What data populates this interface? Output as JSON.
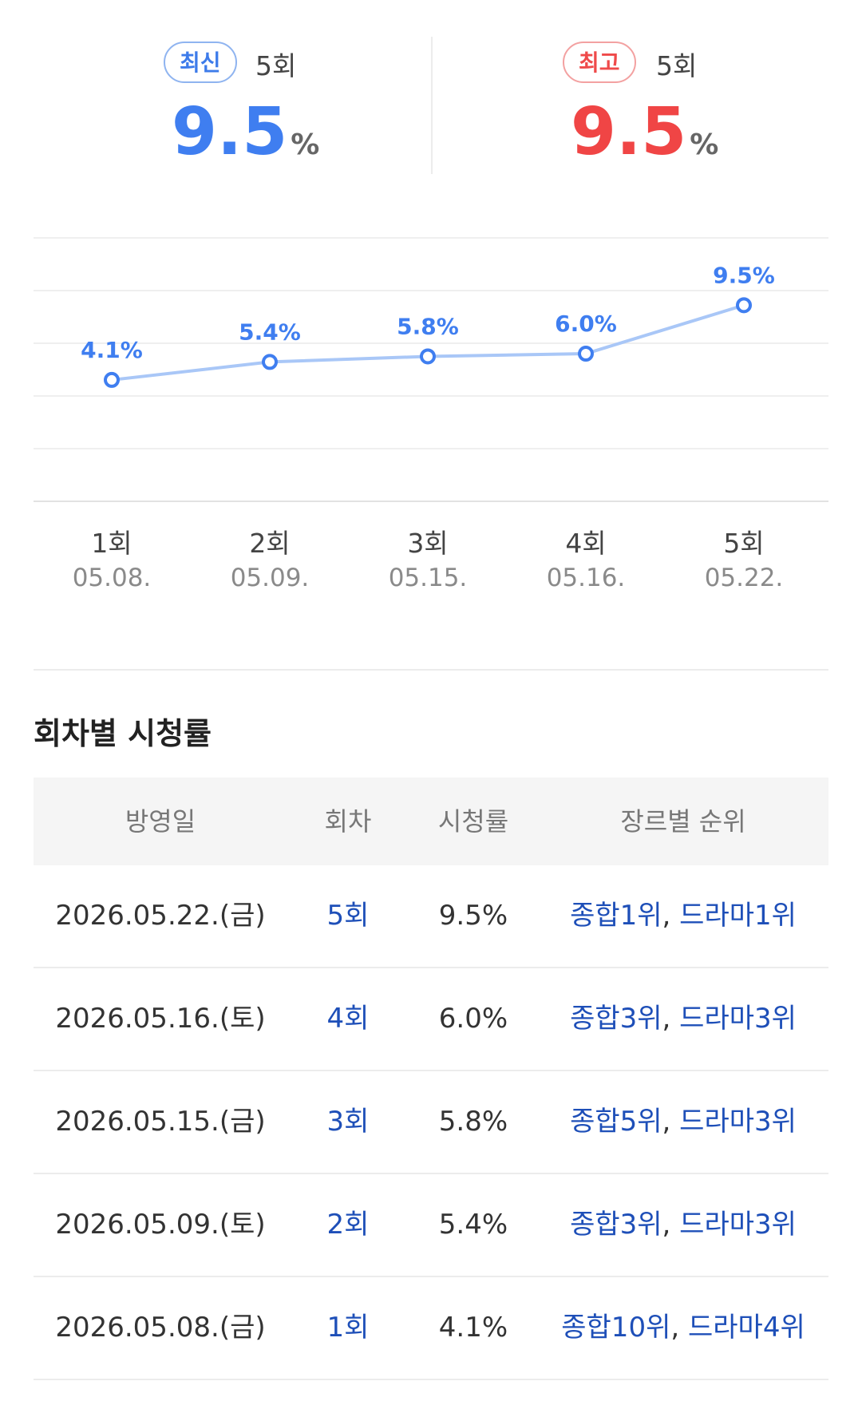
{
  "summary": {
    "latest": {
      "badge": "최신",
      "episode": "5회",
      "value": "9.5",
      "unit": "%"
    },
    "highest": {
      "badge": "최고",
      "episode": "5회",
      "value": "9.5",
      "unit": "%"
    }
  },
  "colors": {
    "latest": "#3f7ef0",
    "highest": "#f04545",
    "line": "#a9c7f7",
    "point": "#3f7ef0",
    "link": "#1e4fb8"
  },
  "chart_data": {
    "type": "line",
    "categories": [
      "1회",
      "2회",
      "3회",
      "4회",
      "5회"
    ],
    "dates": [
      "05.08.",
      "05.09.",
      "05.15.",
      "05.16.",
      "05.22."
    ],
    "values": [
      4.1,
      5.4,
      5.8,
      6.0,
      9.5
    ],
    "data_labels": [
      "4.1%",
      "5.4%",
      "5.8%",
      "6.0%",
      "9.5%"
    ],
    "ylim": [
      -5.6,
      14.6
    ],
    "grid": true,
    "title": "",
    "xlabel": "",
    "ylabel": ""
  },
  "table": {
    "title": "회차별 시청률",
    "headers": [
      "방영일",
      "회차",
      "시청률",
      "장르별 순위"
    ],
    "rows": [
      {
        "date": "2026.05.22.(금)",
        "episode": "5회",
        "rating": "9.5%",
        "rank_overall": "종합1위",
        "sep": ", ",
        "rank_genre": "드라마1위"
      },
      {
        "date": "2026.05.16.(토)",
        "episode": "4회",
        "rating": "6.0%",
        "rank_overall": "종합3위",
        "sep": ", ",
        "rank_genre": "드라마3위"
      },
      {
        "date": "2026.05.15.(금)",
        "episode": "3회",
        "rating": "5.8%",
        "rank_overall": "종합5위",
        "sep": ", ",
        "rank_genre": "드라마3위"
      },
      {
        "date": "2026.05.09.(토)",
        "episode": "2회",
        "rating": "5.4%",
        "rank_overall": "종합3위",
        "sep": ", ",
        "rank_genre": "드라마3위"
      },
      {
        "date": "2026.05.08.(금)",
        "episode": "1회",
        "rating": "4.1%",
        "rank_overall": "종합10위",
        "sep": ", ",
        "rank_genre": "드라마4위"
      }
    ]
  }
}
